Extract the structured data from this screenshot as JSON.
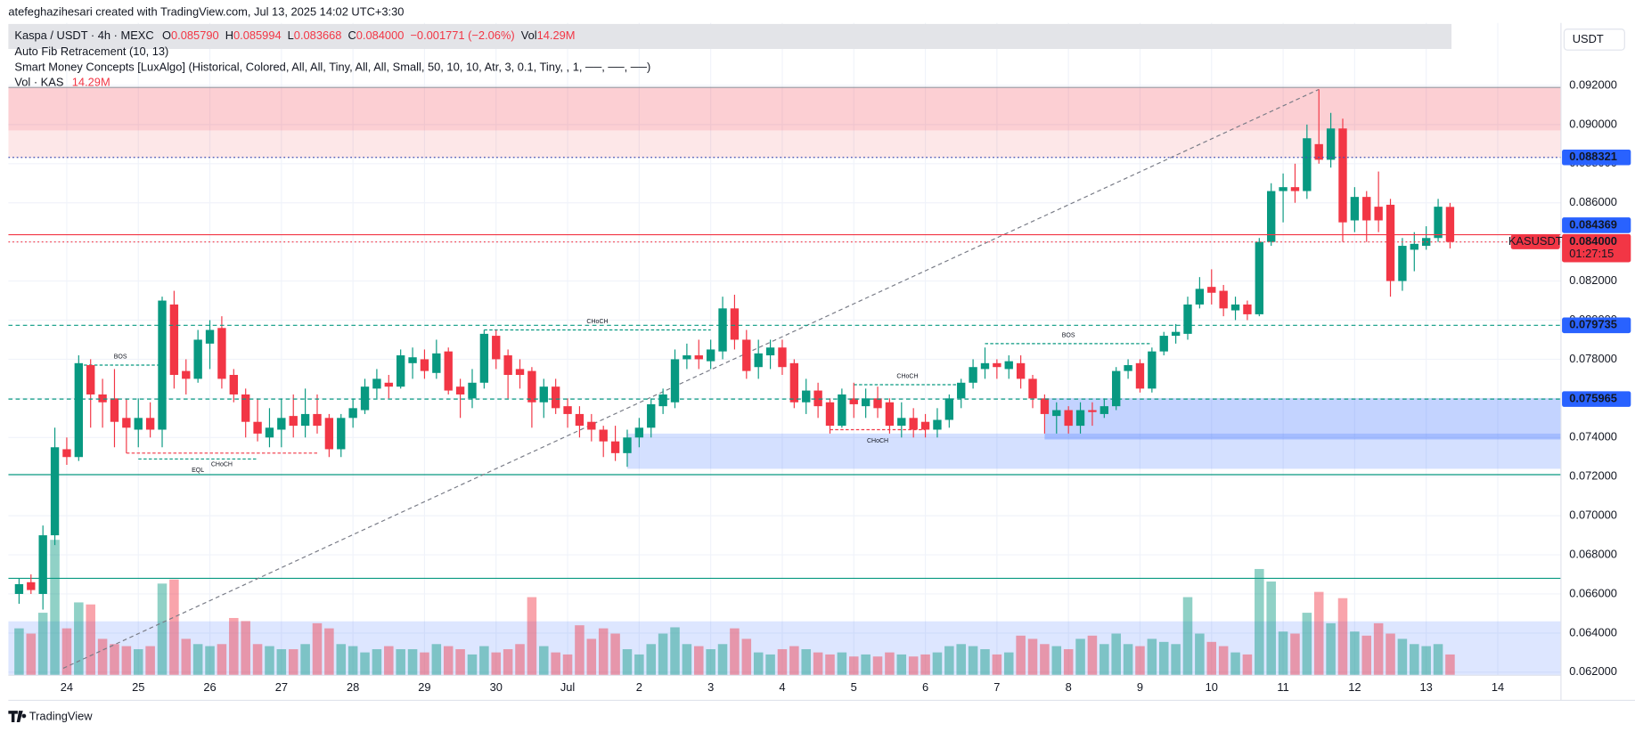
{
  "header": {
    "credit": "atefeghazihesari created with TradingView.com, Jul 13, 2025 14:02 UTC+3:30",
    "symbol": "Kaspa / USDT · 4h · MEXC",
    "o_label": "O",
    "o_value": "0.085790",
    "h_label": "H",
    "h_value": "0.085994",
    "l_label": "L",
    "l_value": "0.083668",
    "c_label": "C",
    "c_value": "0.084000",
    "change": "−0.001771 (−2.06%)",
    "vol_label": "Vol",
    "vol_value": "14.29M",
    "indicators": [
      "Auto Fib Retracement (10, 13)",
      "Smart Money Concepts [LuxAlgo] (Historical, Colored, All, All, Tiny, All, All, Small, 50, 10, 10, Atr, 3, 0.1, Tiny, , 1, ──, ──, ──)"
    ],
    "volume_legend": "Vol · KAS",
    "volume_legend_value": "14.29M"
  },
  "footer": {
    "brand": "TradingView"
  },
  "chart_data": {
    "type": "candlestick",
    "currency": "USDT",
    "up_color": "#089981",
    "down_color": "#f23645",
    "grid": true,
    "xlim": [
      -0.9,
      129.3
    ],
    "xticks": [
      {
        "value": 4,
        "label": "24"
      },
      {
        "value": 10,
        "label": "25"
      },
      {
        "value": 16,
        "label": "26"
      },
      {
        "value": 22,
        "label": "27"
      },
      {
        "value": 28,
        "label": "28"
      },
      {
        "value": 34,
        "label": "29"
      },
      {
        "value": 40,
        "label": "30"
      },
      {
        "value": 46,
        "label": "Jul"
      },
      {
        "value": 52,
        "label": "2"
      },
      {
        "value": 58,
        "label": "3"
      },
      {
        "value": 64,
        "label": "4"
      },
      {
        "value": 70,
        "label": "5"
      },
      {
        "value": 76,
        "label": "6"
      },
      {
        "value": 82,
        "label": "7"
      },
      {
        "value": 88,
        "label": "8"
      },
      {
        "value": 94,
        "label": "9"
      },
      {
        "value": 100,
        "label": "10"
      },
      {
        "value": 106,
        "label": "11"
      },
      {
        "value": 112,
        "label": "12"
      },
      {
        "value": 118,
        "label": "13"
      },
      {
        "value": 124,
        "label": "14"
      }
    ],
    "ylim": [
      0.06184,
      0.095197
    ],
    "yticks": [
      {
        "value": 0.092,
        "label": "0.092000"
      },
      {
        "value": 0.09,
        "label": "0.090000"
      },
      {
        "value": 0.088,
        "label": "0.088000"
      },
      {
        "value": 0.086,
        "label": "0.086000"
      },
      {
        "value": 0.084,
        "label": "0.084000"
      },
      {
        "value": 0.082,
        "label": "0.082000"
      },
      {
        "value": 0.08,
        "label": "0.080000"
      },
      {
        "value": 0.078,
        "label": "0.078000"
      },
      {
        "value": 0.076,
        "label": "0.076000"
      },
      {
        "value": 0.074,
        "label": "0.074000"
      },
      {
        "value": 0.072,
        "label": "0.072000"
      },
      {
        "value": 0.07,
        "label": "0.070000"
      },
      {
        "value": 0.068,
        "label": "0.068000"
      },
      {
        "value": 0.066,
        "label": "0.066000"
      },
      {
        "value": 0.064,
        "label": "0.064000"
      },
      {
        "value": 0.062,
        "label": "0.062000"
      }
    ],
    "open": [
      0.066,
      0.0666,
      0.066,
      0.069,
      0.0734,
      0.073,
      0.0777,
      0.0762,
      0.076,
      0.075,
      0.0744,
      0.075,
      0.0744,
      0.0808,
      0.0774,
      0.077,
      0.0788,
      0.0796,
      0.0772,
      0.0762,
      0.0748,
      0.074,
      0.0744,
      0.0751,
      0.0746,
      0.0752,
      0.075,
      0.0734,
      0.075,
      0.0754,
      0.0765,
      0.0768,
      0.0766,
      0.0778,
      0.078,
      0.0773,
      0.0784,
      0.0766,
      0.076,
      0.0768,
      0.0792,
      0.0782,
      0.0775,
      0.0774,
      0.0758,
      0.0766,
      0.0756,
      0.0752,
      0.0748,
      0.0744,
      0.0738,
      0.0732,
      0.074,
      0.0745,
      0.0756,
      0.0758,
      0.078,
      0.0782,
      0.0779,
      0.0784,
      0.0806,
      0.079,
      0.0776,
      0.0782,
      0.0786,
      0.0778,
      0.0758,
      0.0764,
      0.0758,
      0.0746,
      0.076,
      0.0756,
      0.076,
      0.0758,
      0.0746,
      0.075,
      0.0748,
      0.0744,
      0.0749,
      0.076,
      0.0768,
      0.0775,
      0.0778,
      0.0775,
      0.0778,
      0.077,
      0.076,
      0.0751,
      0.0754,
      0.0746,
      0.0754,
      0.0752,
      0.0756,
      0.0774,
      0.0778,
      0.0765,
      0.0784,
      0.0792,
      0.0793,
      0.0808,
      0.0817,
      0.0815,
      0.0805,
      0.0808,
      0.0803,
      0.084,
      0.0866,
      0.0868,
      0.0866,
      0.089,
      0.0882,
      0.0898,
      0.0851,
      0.0863,
      0.0858,
      0.0859,
      0.082,
      0.0836,
      0.0838,
      0.0842,
      0.08579
    ],
    "high": [
      0.0668,
      0.067,
      0.0695,
      0.0745,
      0.074,
      0.0782,
      0.078,
      0.077,
      0.0775,
      0.076,
      0.076,
      0.0758,
      0.0812,
      0.0815,
      0.078,
      0.0795,
      0.08,
      0.0802,
      0.0775,
      0.0765,
      0.076,
      0.0755,
      0.076,
      0.0762,
      0.0765,
      0.0762,
      0.0752,
      0.0752,
      0.076,
      0.077,
      0.0775,
      0.0772,
      0.0785,
      0.0786,
      0.0785,
      0.079,
      0.0786,
      0.077,
      0.0775,
      0.0795,
      0.0795,
      0.0785,
      0.078,
      0.0776,
      0.077,
      0.077,
      0.076,
      0.0756,
      0.0752,
      0.0746,
      0.0746,
      0.0744,
      0.075,
      0.076,
      0.0765,
      0.0785,
      0.0788,
      0.079,
      0.079,
      0.0812,
      0.0813,
      0.0795,
      0.079,
      0.079,
      0.079,
      0.078,
      0.077,
      0.0768,
      0.076,
      0.0765,
      0.0768,
      0.0765,
      0.0766,
      0.076,
      0.0758,
      0.0755,
      0.0752,
      0.0755,
      0.0762,
      0.077,
      0.078,
      0.0786,
      0.078,
      0.0782,
      0.0782,
      0.0772,
      0.0762,
      0.0758,
      0.0756,
      0.0758,
      0.0758,
      0.076,
      0.0776,
      0.078,
      0.078,
      0.0786,
      0.0794,
      0.0798,
      0.0812,
      0.0822,
      0.0826,
      0.0818,
      0.0812,
      0.081,
      0.0842,
      0.087,
      0.0875,
      0.088,
      0.09,
      0.0918,
      0.0906,
      0.0903,
      0.0868,
      0.0866,
      0.0876,
      0.0862,
      0.0842,
      0.0845,
      0.0848,
      0.0862,
      0.085994
    ],
    "low": [
      0.0655,
      0.066,
      0.0652,
      0.0685,
      0.0726,
      0.0728,
      0.0745,
      0.0745,
      0.0735,
      0.0732,
      0.0735,
      0.074,
      0.0735,
      0.0765,
      0.0762,
      0.0768,
      0.0775,
      0.0765,
      0.0758,
      0.074,
      0.0738,
      0.0735,
      0.0735,
      0.074,
      0.074,
      0.0742,
      0.073,
      0.073,
      0.0745,
      0.0752,
      0.076,
      0.076,
      0.0765,
      0.077,
      0.077,
      0.077,
      0.0762,
      0.075,
      0.0755,
      0.0765,
      0.0775,
      0.076,
      0.0765,
      0.0745,
      0.075,
      0.0752,
      0.0745,
      0.074,
      0.0738,
      0.073,
      0.0728,
      0.0725,
      0.0735,
      0.074,
      0.0752,
      0.0755,
      0.0775,
      0.0775,
      0.0775,
      0.078,
      0.0785,
      0.077,
      0.077,
      0.0775,
      0.0772,
      0.0755,
      0.0752,
      0.075,
      0.0742,
      0.0745,
      0.075,
      0.075,
      0.075,
      0.0742,
      0.074,
      0.074,
      0.074,
      0.074,
      0.0745,
      0.0755,
      0.0765,
      0.077,
      0.077,
      0.077,
      0.0765,
      0.0755,
      0.0742,
      0.0742,
      0.0742,
      0.0742,
      0.0746,
      0.075,
      0.0754,
      0.077,
      0.0763,
      0.0763,
      0.0782,
      0.0788,
      0.079,
      0.0806,
      0.0808,
      0.0802,
      0.08,
      0.08,
      0.0802,
      0.0838,
      0.085,
      0.086,
      0.0862,
      0.088,
      0.0878,
      0.084,
      0.0845,
      0.084,
      0.0845,
      0.0812,
      0.0815,
      0.0825,
      0.0836,
      0.084,
      0.083668
    ],
    "close": [
      0.0665,
      0.0662,
      0.069,
      0.0735,
      0.073,
      0.0778,
      0.0762,
      0.0758,
      0.0748,
      0.0745,
      0.075,
      0.0744,
      0.081,
      0.0772,
      0.077,
      0.079,
      0.0795,
      0.077,
      0.0762,
      0.0748,
      0.0742,
      0.0745,
      0.075,
      0.0746,
      0.0752,
      0.0746,
      0.0734,
      0.075,
      0.0755,
      0.0766,
      0.077,
      0.0766,
      0.0782,
      0.0781,
      0.0774,
      0.0783,
      0.0764,
      0.0762,
      0.0768,
      0.0793,
      0.078,
      0.0772,
      0.0772,
      0.0758,
      0.0766,
      0.0755,
      0.0752,
      0.0746,
      0.0744,
      0.0738,
      0.0732,
      0.074,
      0.0745,
      0.0757,
      0.0762,
      0.078,
      0.0782,
      0.078,
      0.0785,
      0.0806,
      0.079,
      0.0774,
      0.0783,
      0.0786,
      0.0776,
      0.0758,
      0.0764,
      0.0756,
      0.0746,
      0.0762,
      0.0757,
      0.076,
      0.0755,
      0.0746,
      0.075,
      0.0744,
      0.0744,
      0.0749,
      0.076,
      0.0768,
      0.0776,
      0.0778,
      0.0776,
      0.0779,
      0.077,
      0.076,
      0.0752,
      0.0754,
      0.0746,
      0.0754,
      0.0753,
      0.0756,
      0.0774,
      0.0777,
      0.0765,
      0.0784,
      0.0792,
      0.0794,
      0.0808,
      0.0816,
      0.0814,
      0.0806,
      0.0808,
      0.0803,
      0.084,
      0.0866,
      0.0868,
      0.0866,
      0.0893,
      0.0882,
      0.0898,
      0.085,
      0.0863,
      0.0851,
      0.0851,
      0.082,
      0.0838,
      0.0839,
      0.0842,
      0.0858,
      0.084
    ],
    "volume": [
      32.2,
      28.6,
      42.9,
      92.9,
      32.2,
      50.0,
      48.6,
      25.0,
      21.4,
      20.0,
      17.9,
      20.0,
      62.9,
      65.7,
      25.0,
      21.4,
      20.0,
      21.4,
      39.3,
      37.2,
      21.4,
      20.0,
      17.9,
      17.9,
      21.4,
      35.7,
      32.2,
      21.4,
      20.0,
      15.7,
      17.9,
      20.0,
      17.9,
      17.9,
      15.7,
      21.4,
      20.0,
      17.9,
      14.3,
      20.0,
      15.7,
      17.9,
      21.4,
      53.6,
      20.0,
      15.7,
      14.3,
      34.3,
      25.0,
      32.2,
      28.6,
      17.9,
      14.3,
      21.4,
      28.6,
      32.9,
      21.4,
      20.0,
      17.9,
      21.4,
      32.2,
      25.0,
      15.7,
      14.3,
      17.9,
      20.0,
      17.9,
      15.7,
      14.3,
      15.7,
      12.9,
      14.3,
      12.9,
      15.7,
      14.3,
      12.9,
      14.3,
      15.7,
      20.0,
      21.4,
      20.0,
      17.9,
      14.3,
      15.7,
      27.2,
      25.0,
      21.4,
      20.0,
      17.9,
      25.0,
      27.2,
      21.4,
      28.6,
      21.4,
      20.0,
      25.0,
      22.9,
      21.4,
      53.6,
      28.6,
      22.9,
      20.0,
      15.7,
      14.3,
      72.9,
      64.3,
      30.0,
      28.6,
      42.9,
      57.2,
      35.7,
      52.9,
      30.0,
      27.2,
      35.7,
      28.6,
      25.0,
      21.4,
      20.0,
      21.4,
      14.29
    ],
    "zones": [
      {
        "top": 0.0919,
        "bottom": 0.0897,
        "from": -0.9,
        "to": 129.3,
        "color": "rgba(242,54,69,0.24)"
      },
      {
        "top": 0.0897,
        "bottom": 0.0883,
        "from": -0.9,
        "to": 129.3,
        "color": "rgba(242,54,69,0.12)"
      },
      {
        "top": 0.0742,
        "bottom": 0.0724,
        "from": 51,
        "to": 129.3,
        "color": "rgba(41,98,255,0.2)"
      },
      {
        "top": 0.076,
        "bottom": 0.0739,
        "from": 86,
        "to": 129.3,
        "color": "rgba(41,98,255,0.28)"
      },
      {
        "top": 0.0646,
        "bottom": 0.0618,
        "from": -0.9,
        "to": 129.3,
        "color": "rgba(41,98,255,0.16)"
      }
    ],
    "lines": [
      {
        "value": 0.0919,
        "color": "#9598a1"
      },
      {
        "value": 0.0721,
        "color": "#089981"
      },
      {
        "value": 0.0668,
        "color": "#089981"
      }
    ],
    "fib_line": {
      "from": [
        3.7,
        0.0622
      ],
      "to": [
        109,
        0.0918
      ],
      "color": "#787b86"
    },
    "structures": [
      {
        "label": "BOS",
        "from": 5,
        "to": 12,
        "value": 0.0777,
        "color": "#089981",
        "below": false
      },
      {
        "label": "CHoCH",
        "from": 9,
        "to": 25,
        "value": 0.0732,
        "color": "#f23645",
        "below": true
      },
      {
        "label": "EQL",
        "from": 10,
        "to": 20,
        "value": 0.0729,
        "color": "#089981",
        "below": true
      },
      {
        "label": "CHoCH",
        "from": 39,
        "to": 58,
        "value": 0.0795,
        "color": "#089981",
        "below": false
      },
      {
        "label": "CHoCH",
        "from": 70,
        "to": 79,
        "value": 0.0767,
        "color": "#089981",
        "below": false
      },
      {
        "label": "CHoCH",
        "from": 68,
        "to": 76,
        "value": 0.0744,
        "color": "#f23645",
        "below": true
      },
      {
        "label": "BOS",
        "from": 81,
        "to": 95,
        "value": 0.0788,
        "color": "#089981",
        "below": false
      }
    ],
    "last_price": {
      "value": 0.084,
      "label": "0.084000"
    },
    "symbol_tag": "KASUSDT",
    "countdown": "01:27:15",
    "label_color": "#2962ff",
    "price_lines": [
      {
        "value": 0.088321,
        "color": "#3f51b5",
        "dash": "dotted"
      },
      {
        "value": 0.084369,
        "color": "#f23645",
        "dash": "solid"
      },
      {
        "value": 0.079735,
        "color": "#089981",
        "dash": "dashed"
      },
      {
        "value": 0.075965,
        "color": "#089981",
        "dash": "dashed"
      }
    ]
  }
}
